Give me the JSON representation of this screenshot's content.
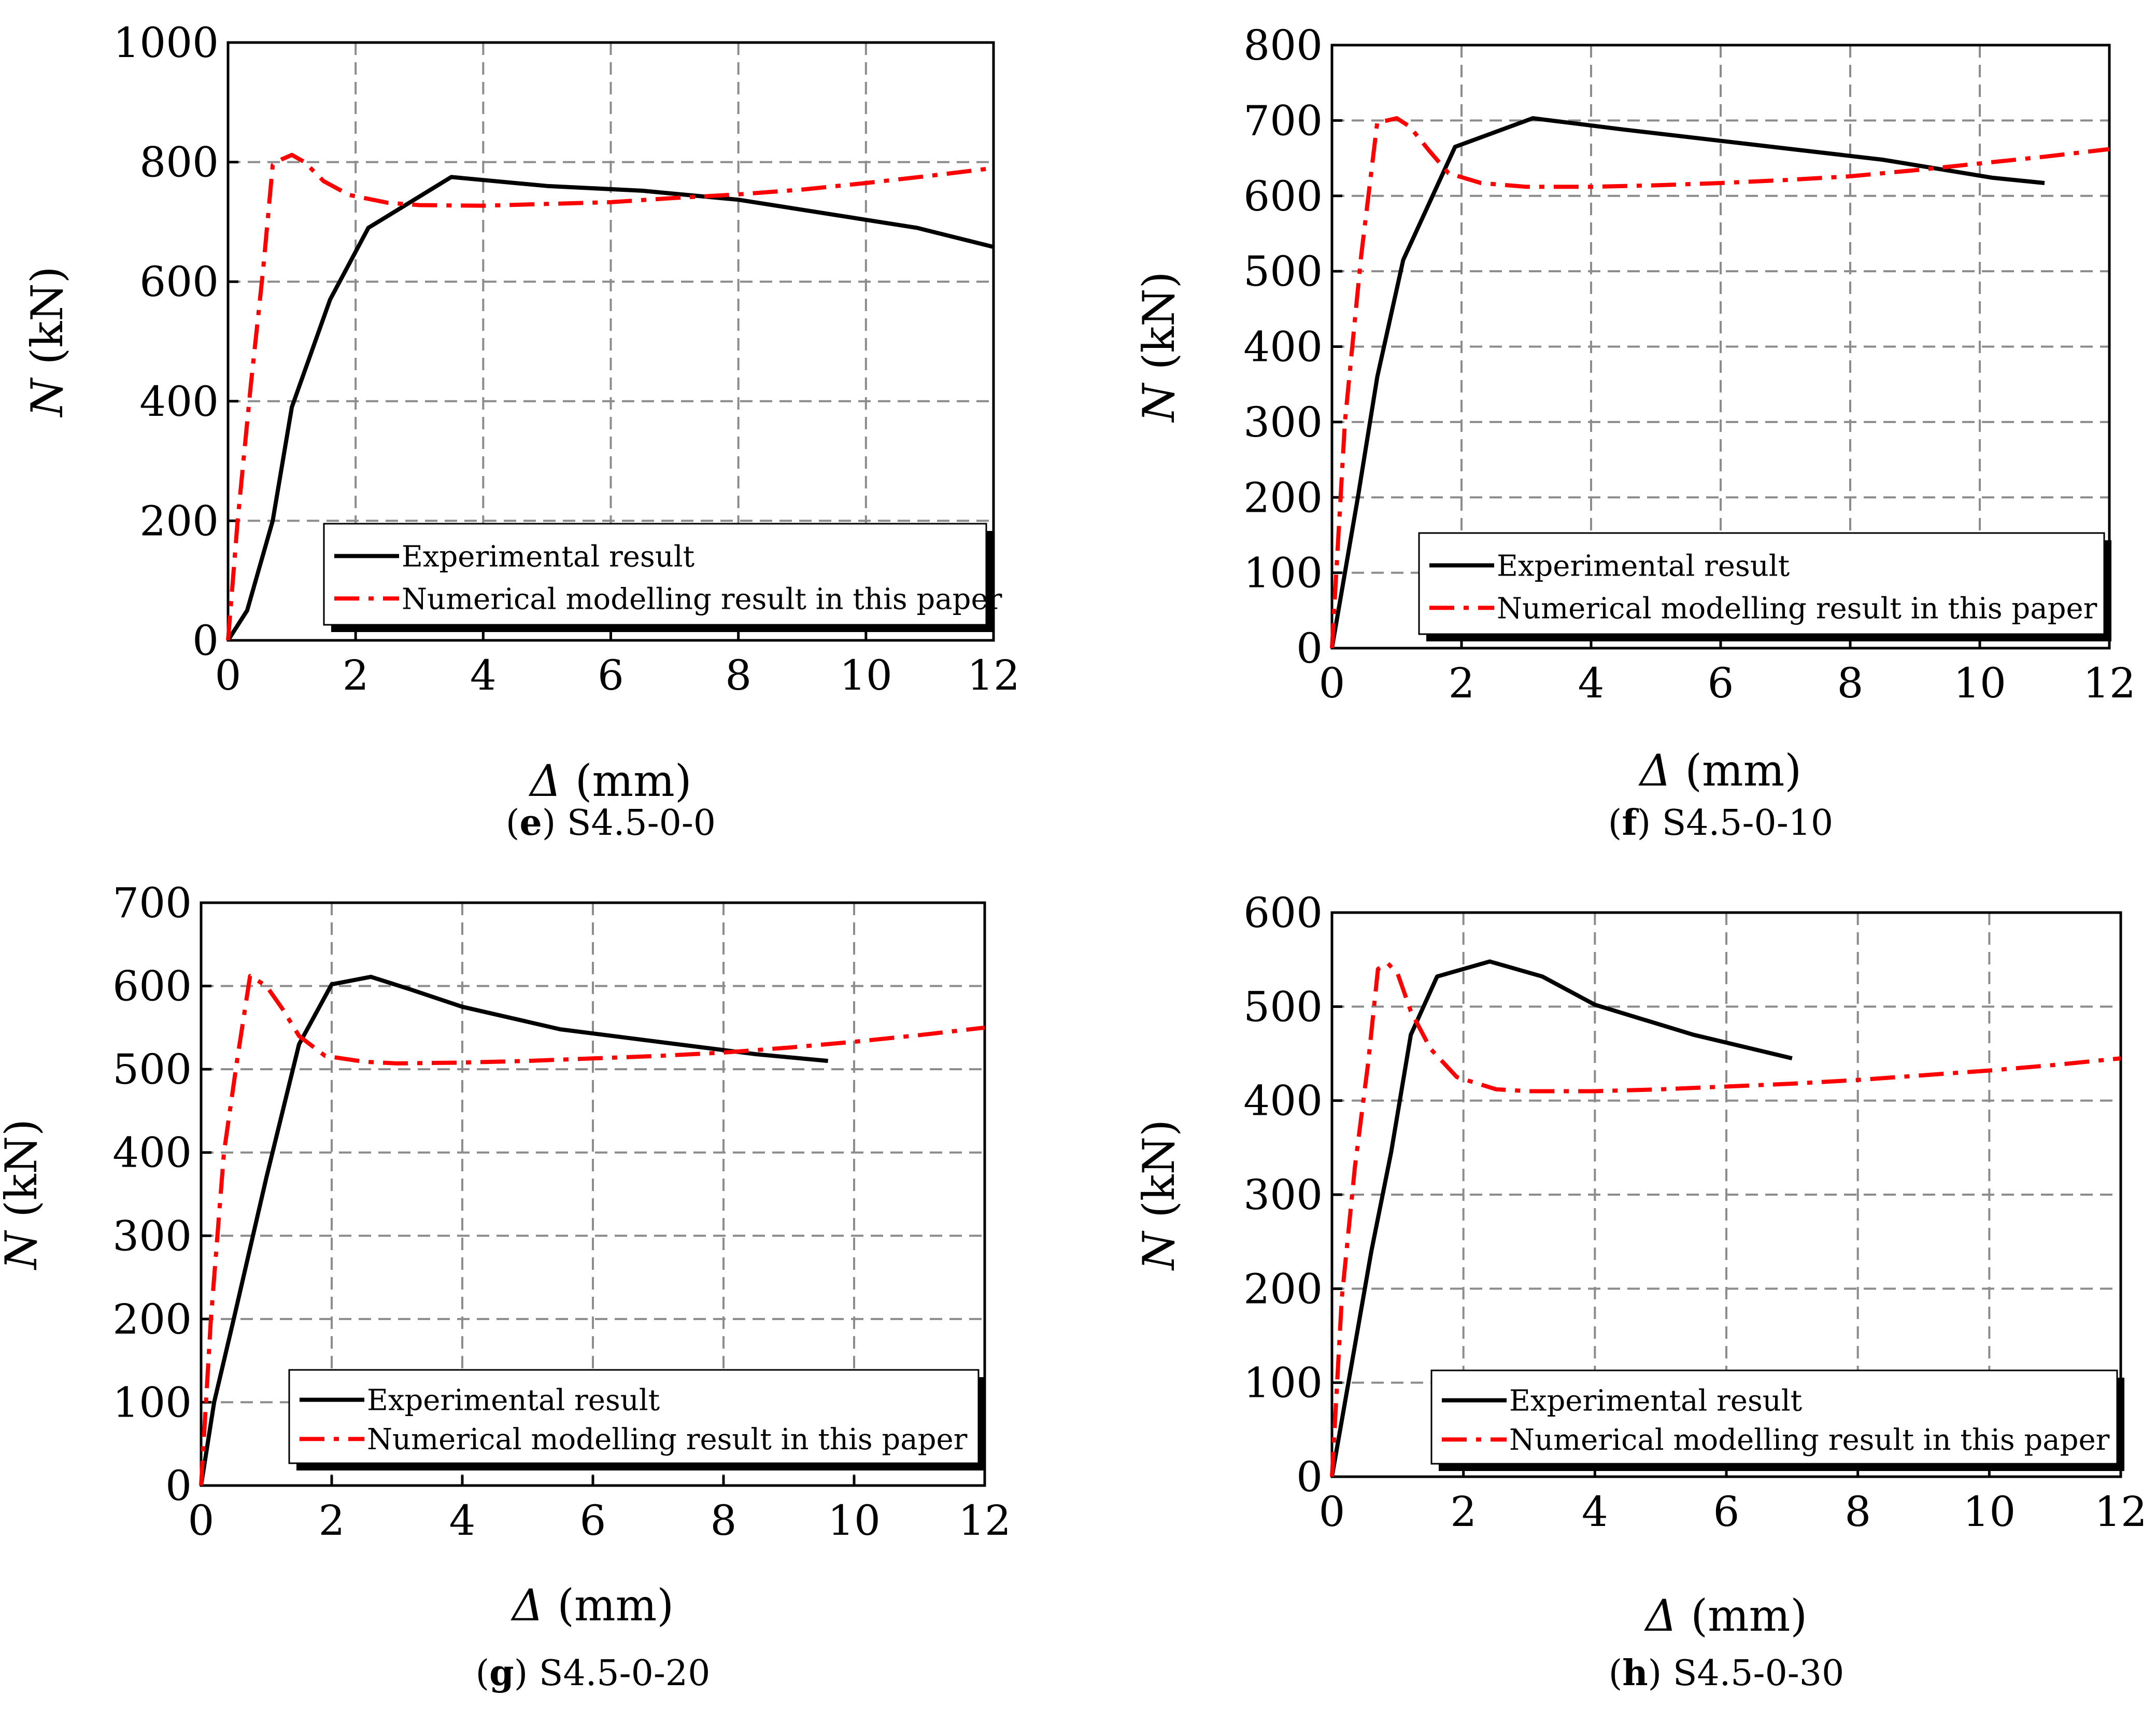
{
  "chart_data": [
    {
      "type": "line",
      "caption_letter": "e",
      "caption_text": "S4.5-0-0",
      "xlabel_symbol": "Δ",
      "xlabel_unit": "(mm)",
      "ylabel_symbol": "N",
      "ylabel_unit": "(kN)",
      "xlim": [
        0,
        12
      ],
      "ylim": [
        0,
        1000
      ],
      "xticks": [
        0,
        2,
        4,
        6,
        8,
        10,
        12
      ],
      "yticks": [
        0,
        200,
        400,
        600,
        800,
        1000
      ],
      "grid": true,
      "legend_position": "bottom-right",
      "series": [
        {
          "name": "Experimental result",
          "color": "#000000",
          "x": [
            0,
            0.3,
            0.7,
            1.0,
            1.6,
            2.2,
            3.5,
            5.0,
            6.5,
            8.0,
            10.8,
            12.0
          ],
          "y": [
            0,
            50,
            200,
            390,
            570,
            690,
            775,
            760,
            752,
            737,
            690,
            658
          ]
        },
        {
          "name": "Numerical modelling result in this paper",
          "color": "#ff0000",
          "x": [
            0,
            0.15,
            0.35,
            0.55,
            0.7,
            0.85,
            1.0,
            1.2,
            1.5,
            1.9,
            2.5,
            3.0,
            4.0,
            5.0,
            6.0,
            7.0,
            8.0,
            9.0,
            10.0,
            11.0,
            12.0
          ],
          "y": [
            0,
            200,
            420,
            620,
            795,
            805,
            812,
            800,
            768,
            745,
            732,
            728,
            727,
            730,
            733,
            740,
            746,
            754,
            765,
            777,
            790
          ]
        }
      ]
    },
    {
      "type": "line",
      "caption_letter": "f",
      "caption_text": "S4.5-0-10",
      "xlabel_symbol": "Δ",
      "xlabel_unit": "(mm)",
      "ylabel_symbol": "N",
      "ylabel_unit": "(kN)",
      "xlim": [
        0,
        12
      ],
      "ylim": [
        0,
        800
      ],
      "xticks": [
        0,
        2,
        4,
        6,
        8,
        10,
        12
      ],
      "yticks": [
        0,
        100,
        200,
        300,
        400,
        500,
        600,
        700,
        800
      ],
      "grid": true,
      "legend_position": "bottom-right",
      "series": [
        {
          "name": "Experimental result",
          "color": "#000000",
          "x": [
            0,
            0.4,
            0.7,
            1.1,
            1.9,
            3.1,
            4.5,
            6.5,
            8.5,
            10.2,
            11.0
          ],
          "y": [
            0,
            200,
            360,
            515,
            665,
            703,
            688,
            668,
            648,
            624,
            617
          ]
        },
        {
          "name": "Numerical modelling result in this paper",
          "color": "#ff0000",
          "x": [
            0,
            0.2,
            0.45,
            0.7,
            0.85,
            1.0,
            1.2,
            1.5,
            1.8,
            2.3,
            3.0,
            4.0,
            5.0,
            6.0,
            7.0,
            8.0,
            9.0,
            10.0,
            11.0,
            12.0
          ],
          "y": [
            0,
            300,
            520,
            698,
            700,
            703,
            692,
            660,
            630,
            617,
            612,
            612,
            614,
            617,
            621,
            626,
            634,
            643,
            652,
            662
          ]
        }
      ]
    },
    {
      "type": "line",
      "caption_letter": "g",
      "caption_text": "S4.5-0-20",
      "xlabel_symbol": "Δ",
      "xlabel_unit": "(mm)",
      "ylabel_symbol": "N",
      "ylabel_unit": "(kN)",
      "xlim": [
        0,
        12
      ],
      "ylim": [
        0,
        700
      ],
      "xticks": [
        0,
        2,
        4,
        6,
        8,
        10,
        12
      ],
      "yticks": [
        0,
        100,
        200,
        300,
        400,
        500,
        600,
        700
      ],
      "grid": true,
      "legend_position": "bottom-right",
      "series": [
        {
          "name": "Experimental result",
          "color": "#000000",
          "x": [
            0,
            0.2,
            0.5,
            1.0,
            1.5,
            2.0,
            2.6,
            3.2,
            4.0,
            5.5,
            7.0,
            8.5,
            9.6
          ],
          "y": [
            0,
            100,
            200,
            370,
            530,
            602,
            611,
            596,
            575,
            548,
            533,
            518,
            510
          ]
        },
        {
          "name": "Numerical modelling result in this paper",
          "color": "#ff0000",
          "x": [
            0,
            0.15,
            0.35,
            0.55,
            0.75,
            1.0,
            1.25,
            1.5,
            1.9,
            2.5,
            3.0,
            4.0,
            5.0,
            6.0,
            7.0,
            8.0,
            9.0,
            10.0,
            11.0,
            12.0
          ],
          "y": [
            0,
            200,
            400,
            510,
            612,
            600,
            572,
            540,
            516,
            509,
            507,
            508,
            510,
            513,
            516,
            520,
            526,
            533,
            541,
            550
          ]
        }
      ]
    },
    {
      "type": "line",
      "caption_letter": "h",
      "caption_text": "S4.5-0-30",
      "xlabel_symbol": "Δ",
      "xlabel_unit": "(mm)",
      "ylabel_symbol": "N",
      "ylabel_unit": "(kN)",
      "xlim": [
        0,
        12
      ],
      "ylim": [
        0,
        600
      ],
      "xticks": [
        0,
        2,
        4,
        6,
        8,
        10,
        12
      ],
      "yticks": [
        0,
        100,
        200,
        300,
        400,
        500,
        600
      ],
      "grid": true,
      "legend_position": "bottom-right",
      "series": [
        {
          "name": "Experimental result",
          "color": "#000000",
          "x": [
            0,
            0.3,
            0.6,
            0.9,
            1.2,
            1.6,
            2.4,
            3.2,
            4.0,
            5.5,
            7.0
          ],
          "y": [
            0,
            120,
            240,
            345,
            470,
            532,
            548,
            532,
            502,
            470,
            445
          ]
        },
        {
          "name": "Numerical modelling result in this paper",
          "color": "#ff0000",
          "x": [
            0,
            0.15,
            0.35,
            0.55,
            0.7,
            0.85,
            1.0,
            1.2,
            1.5,
            1.9,
            2.5,
            3.0,
            4.0,
            5.0,
            6.0,
            7.0,
            8.0,
            9.0,
            10.0,
            11.0,
            12.0
          ],
          "y": [
            0,
            190,
            330,
            440,
            540,
            546,
            535,
            495,
            455,
            425,
            412,
            410,
            410,
            412,
            415,
            418,
            422,
            427,
            432,
            438,
            445
          ]
        }
      ]
    }
  ]
}
